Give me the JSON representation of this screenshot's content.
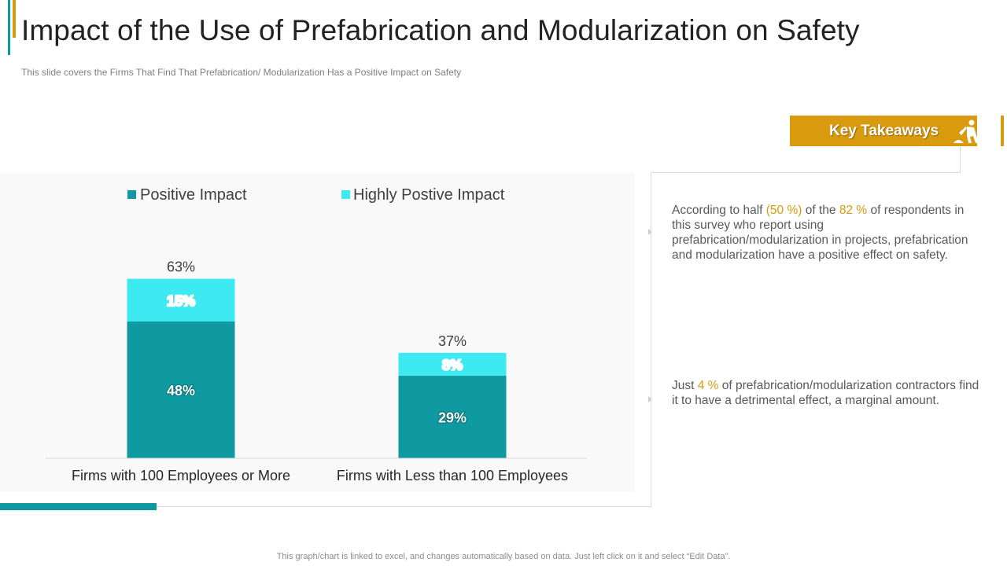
{
  "header": {
    "title": "Impact of the Use of Prefabrication  and Modularization  on Safety",
    "subtitle": "This slide covers  the Firms That Find That  Prefabrication/  Modularization  Has a Positive Impact  on Safety"
  },
  "colors": {
    "positive": "#0E9AA0",
    "highly_positive": "#3DEAF2",
    "accent_gold": "#D99A0F"
  },
  "chart_data": {
    "type": "bar",
    "stacked": true,
    "categories": [
      "Firms with 100 Employees or More",
      "Firms with Less than 100 Employees"
    ],
    "series": [
      {
        "name": "Positive Impact",
        "values": [
          48,
          29
        ],
        "labels": [
          "48%",
          "29%"
        ]
      },
      {
        "name": "Highly Postive Impact",
        "values": [
          15,
          8
        ],
        "labels": [
          "15%",
          "8%"
        ]
      }
    ],
    "totals": [
      63,
      37
    ],
    "total_labels": [
      "63%",
      "37%"
    ],
    "ylim": [
      0,
      80
    ],
    "legend_position": "top",
    "grid": false
  },
  "takeaways": {
    "title": "Key Takeaways",
    "icon": "construction-worker-icon",
    "items": [
      {
        "p1": "According to half ",
        "h1": "(50 %)",
        "p2": " of the ",
        "h2": "82 %",
        "p3": " of respondents in this survey  who report using prefabrication/modularization  in projects, prefabrication and modularization  have a positive effect on safety."
      },
      {
        "p1": "Just ",
        "h1": "4 %",
        "p2": " of prefabrication/modularization contractors find it to have a detrimental effect, a marginal amount."
      }
    ]
  },
  "footer": {
    "note": "This graph/chart is linked to excel,  and changes automatically based on data. Just left click on it and select “Edit Data”."
  }
}
